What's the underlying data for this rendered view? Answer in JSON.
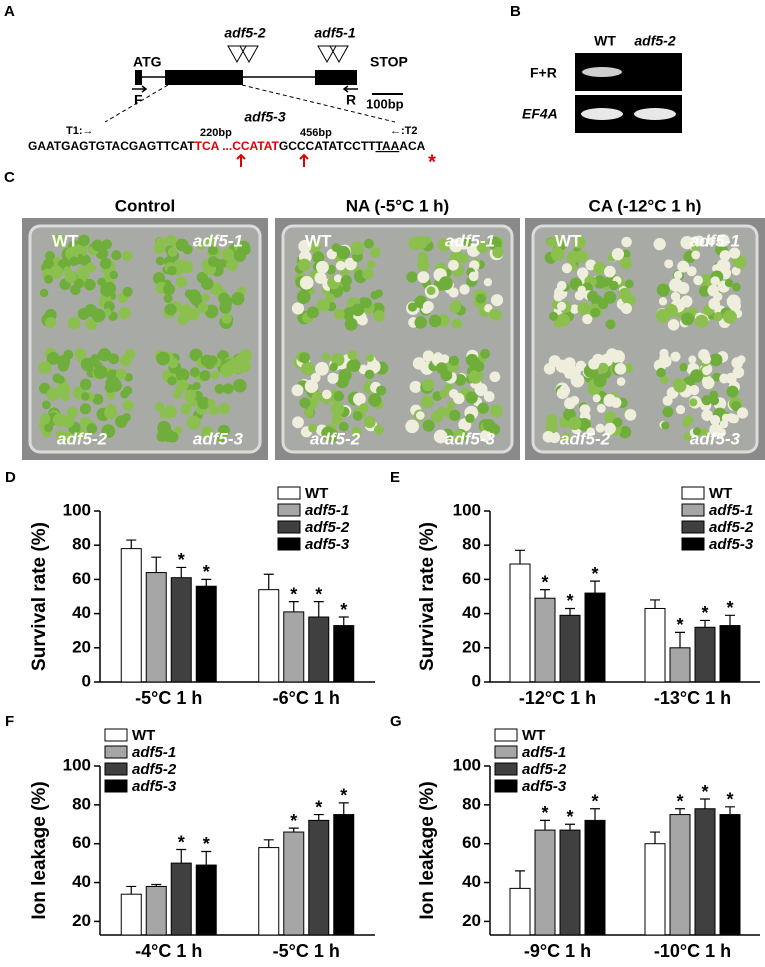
{
  "panels": {
    "a": {
      "label": "A",
      "start": "ATG",
      "stop": "STOP",
      "insert_1": "adf5-2",
      "insert_2": "adf5-1",
      "forward_primer": "F",
      "reverse_primer": "R",
      "scale": "100bp",
      "deletion": "adf5-3",
      "target_1": "T1:→",
      "target_2": "←:T2",
      "pos_1": "220bp",
      "pos_2": "456bp",
      "sequence": [
        "GAATGAGTGTACGAGTTCAT",
        "TCA ...CCATAT",
        "GCCCATATCCTT",
        "TAA",
        "ACA"
      ],
      "marker": "*"
    },
    "b": {
      "label": "B",
      "lanes": [
        "WT",
        "adf5-2"
      ],
      "rows": [
        "F+R",
        "EF4A"
      ]
    },
    "c": {
      "label": "C",
      "conditions": [
        "Control",
        "NA (-5°C 1 h)",
        "CA (-12°C 1 h)"
      ],
      "genotypes": [
        "WT",
        "adf5-1",
        "adf5-2",
        "adf5-3"
      ]
    }
  },
  "chart_data": [
    {
      "type": "bar",
      "panel_label": "D",
      "y_label": "Survival rate (%)",
      "categories": [
        "-5°C 1 h",
        "-6°C 1 h"
      ],
      "ylim": [
        0,
        100
      ],
      "yticks": [
        0,
        20,
        40,
        60,
        80,
        100
      ],
      "legend": "top-right",
      "series": [
        {
          "name": "WT",
          "color": "#ffffff",
          "values": [
            78,
            54
          ],
          "errors": [
            5,
            9
          ],
          "significance": [
            null,
            null
          ]
        },
        {
          "name": "adf5-1",
          "color": "#a6a6a6",
          "values": [
            64,
            41
          ],
          "errors": [
            9,
            6
          ],
          "significance": [
            null,
            "*"
          ]
        },
        {
          "name": "adf5-2",
          "color": "#404040",
          "values": [
            61,
            38
          ],
          "errors": [
            6,
            9
          ],
          "significance": [
            "*",
            "*"
          ]
        },
        {
          "name": "adf5-3",
          "color": "#000000",
          "values": [
            56,
            33
          ],
          "errors": [
            4,
            5
          ],
          "significance": [
            "*",
            "*"
          ]
        }
      ]
    },
    {
      "type": "bar",
      "panel_label": "E",
      "y_label": "Survival rate (%)",
      "categories": [
        "-12°C 1 h",
        "-13°C 1 h"
      ],
      "ylim": [
        0,
        100
      ],
      "yticks": [
        0,
        20,
        40,
        60,
        80,
        100
      ],
      "legend": "top-right",
      "series": [
        {
          "name": "WT",
          "color": "#ffffff",
          "values": [
            69,
            43
          ],
          "errors": [
            8,
            5
          ],
          "significance": [
            null,
            null
          ]
        },
        {
          "name": "adf5-1",
          "color": "#a6a6a6",
          "values": [
            49,
            20
          ],
          "errors": [
            5,
            9
          ],
          "significance": [
            "*",
            "*"
          ]
        },
        {
          "name": "adf5-2",
          "color": "#404040",
          "values": [
            39,
            32
          ],
          "errors": [
            4,
            4
          ],
          "significance": [
            "*",
            "*"
          ]
        },
        {
          "name": "adf5-3",
          "color": "#000000",
          "values": [
            52,
            33
          ],
          "errors": [
            7,
            6
          ],
          "significance": [
            "*",
            "*"
          ]
        }
      ]
    },
    {
      "type": "bar",
      "panel_label": "F",
      "y_label": "Ion leakage (%)",
      "categories": [
        "-4°C 1 h",
        "-5°C 1 h"
      ],
      "ylim": [
        13,
        100
      ],
      "yticks": [
        20,
        40,
        60,
        80,
        100
      ],
      "legend": "top-left",
      "series": [
        {
          "name": "WT",
          "color": "#ffffff",
          "values": [
            34,
            58
          ],
          "errors": [
            4,
            4
          ],
          "significance": [
            null,
            null
          ]
        },
        {
          "name": "adf5-1",
          "color": "#a6a6a6",
          "values": [
            38,
            66
          ],
          "errors": [
            1,
            2
          ],
          "significance": [
            null,
            "*"
          ]
        },
        {
          "name": "adf5-2",
          "color": "#404040",
          "values": [
            50,
            72
          ],
          "errors": [
            7,
            3
          ],
          "significance": [
            "*",
            "*"
          ]
        },
        {
          "name": "adf5-3",
          "color": "#000000",
          "values": [
            49,
            75
          ],
          "errors": [
            7,
            6
          ],
          "significance": [
            "*",
            "*"
          ]
        }
      ]
    },
    {
      "type": "bar",
      "panel_label": "G",
      "y_label": "Ion leakage (%)",
      "categories": [
        "-9°C 1 h",
        "-10°C 1 h"
      ],
      "ylim": [
        13,
        100
      ],
      "yticks": [
        20,
        40,
        60,
        80,
        100
      ],
      "legend": "top-left",
      "series": [
        {
          "name": "WT",
          "color": "#ffffff",
          "values": [
            37,
            60
          ],
          "errors": [
            9,
            6
          ],
          "significance": [
            null,
            null
          ]
        },
        {
          "name": "adf5-1",
          "color": "#a6a6a6",
          "values": [
            67,
            75
          ],
          "errors": [
            5,
            3
          ],
          "significance": [
            "*",
            "*"
          ]
        },
        {
          "name": "adf5-2",
          "color": "#404040",
          "values": [
            67,
            78
          ],
          "errors": [
            3,
            5
          ],
          "significance": [
            "*",
            "*"
          ]
        },
        {
          "name": "adf5-3",
          "color": "#000000",
          "values": [
            72,
            75
          ],
          "errors": [
            6,
            4
          ],
          "significance": [
            "*",
            "*"
          ]
        }
      ]
    }
  ]
}
